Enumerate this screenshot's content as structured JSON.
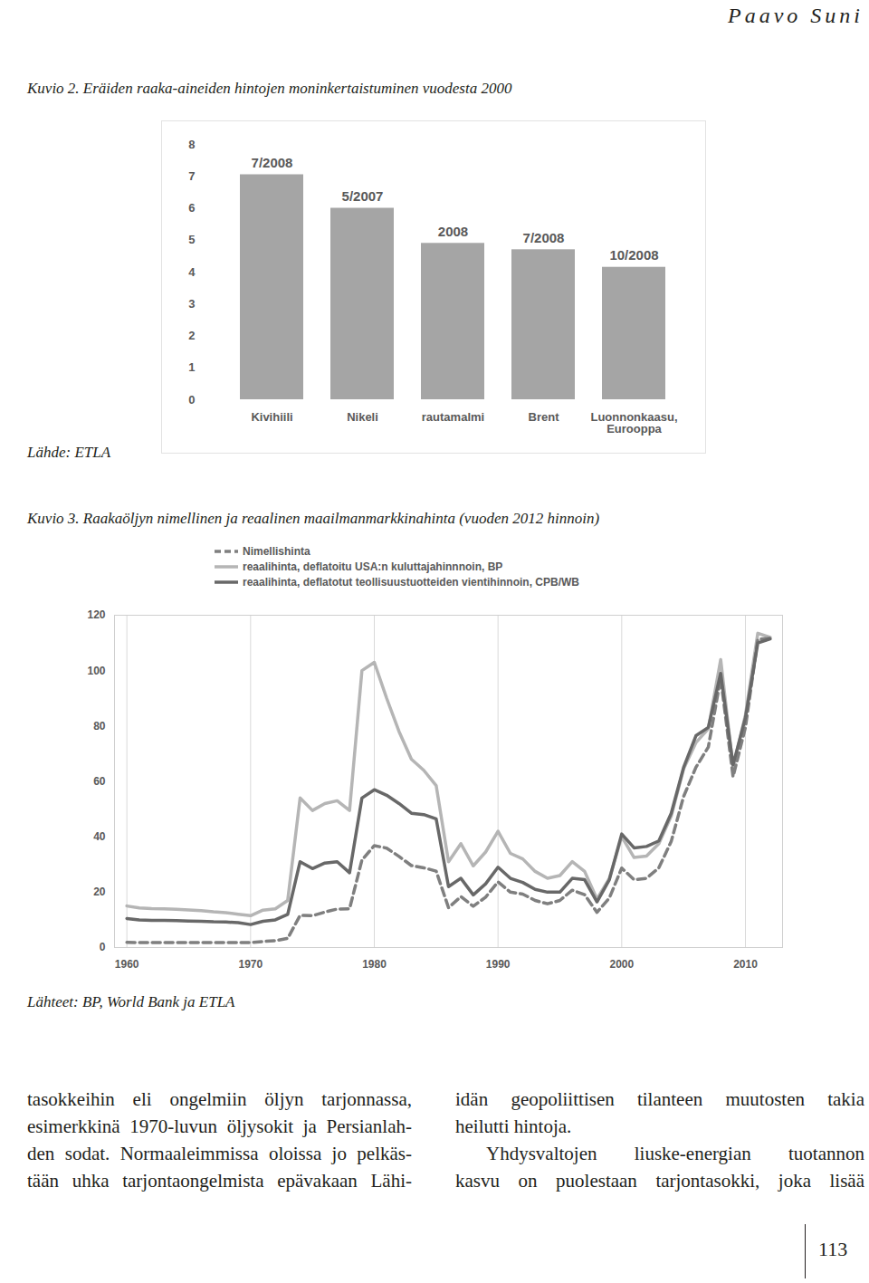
{
  "header": "Paavo Suni",
  "chart_data": [
    {
      "type": "bar",
      "title": "Kuvio 2. Eräiden raaka-aineiden hintojen moninkertaistuminen vuodesta 2000",
      "categories": [
        "Kivihiili",
        "Nikeli",
        "rautamalmi",
        "Brent",
        "Luonnonkaasu, Eurooppa"
      ],
      "values": [
        7.05,
        6.0,
        4.9,
        4.7,
        4.15
      ],
      "annotations": [
        "7/2008",
        "5/2007",
        "2008",
        "7/2008",
        "10/2008"
      ],
      "color": "#a5a5a5",
      "ylim": [
        0,
        8
      ],
      "yticks": [
        0,
        1,
        2,
        3,
        4,
        5,
        6,
        7,
        8
      ]
    },
    {
      "type": "line",
      "title": "Kuvio 3. Raakaöljyn nimellinen ja reaalinen maailmanmarkkinahinta (vuoden 2012 hinnoin)",
      "x": [
        1960,
        1961,
        1962,
        1963,
        1964,
        1965,
        1966,
        1967,
        1968,
        1969,
        1970,
        1971,
        1972,
        1973,
        1974,
        1975,
        1976,
        1977,
        1978,
        1979,
        1980,
        1981,
        1982,
        1983,
        1984,
        1985,
        1986,
        1987,
        1988,
        1989,
        1990,
        1991,
        1992,
        1993,
        1994,
        1995,
        1996,
        1997,
        1998,
        1999,
        2000,
        2001,
        2002,
        2003,
        2004,
        2005,
        2006,
        2007,
        2008,
        2009,
        2010,
        2011,
        2012
      ],
      "series": [
        {
          "name": "Nimellishinta",
          "color": "#7f7f7f",
          "line_style": "dashed",
          "values": [
            1.9,
            1.8,
            1.8,
            1.8,
            1.8,
            1.8,
            1.8,
            1.8,
            1.8,
            1.8,
            1.8,
            2.2,
            2.5,
            3.3,
            11.6,
            11.5,
            12.8,
            13.9,
            14.0,
            31.6,
            36.8,
            35.9,
            32.9,
            29.6,
            28.8,
            27.6,
            14.4,
            18.4,
            14.9,
            18.2,
            23.7,
            20.0,
            19.3,
            17.0,
            15.8,
            17.0,
            20.7,
            19.1,
            12.7,
            17.9,
            28.7,
            24.5,
            25.0,
            28.8,
            38.3,
            54.5,
            65.1,
            72.4,
            97.3,
            61.7,
            79.5,
            111.3,
            111.7
          ]
        },
        {
          "name": "reaalihinta, deflatoitu USA:n kuluttajahinnnoin, BP",
          "color": "#b5b5b5",
          "line_style": "solid",
          "values": [
            15.0,
            14.3,
            14.1,
            14.0,
            13.8,
            13.6,
            13.3,
            12.9,
            12.6,
            12.0,
            11.5,
            13.5,
            14.0,
            17.0,
            54.0,
            49.5,
            52.0,
            53.0,
            49.5,
            100.0,
            103.0,
            90.0,
            78.0,
            68.0,
            64.0,
            58.5,
            31.0,
            37.5,
            29.5,
            34.5,
            42.0,
            34.0,
            32.0,
            27.5,
            25.0,
            26.0,
            31.0,
            27.5,
            17.5,
            25.0,
            40.0,
            32.5,
            33.0,
            37.5,
            47.5,
            64.5,
            74.0,
            79.0,
            104.0,
            65.0,
            84.0,
            113.5,
            112.0
          ]
        },
        {
          "name": "reaalihinta, deflatotut teollisuustuotteiden vientihinnoin, CPB/WB",
          "color": "#686868",
          "line_style": "solid",
          "values": [
            10.5,
            10.0,
            9.8,
            9.8,
            9.7,
            9.6,
            9.5,
            9.3,
            9.2,
            9.0,
            8.3,
            9.5,
            10.0,
            12.0,
            31.0,
            28.5,
            30.5,
            31.0,
            27.0,
            54.0,
            57.0,
            55.0,
            52.0,
            48.5,
            48.0,
            46.5,
            22.0,
            25.0,
            19.0,
            23.0,
            29.0,
            25.0,
            23.5,
            21.0,
            20.0,
            20.0,
            25.0,
            24.5,
            16.5,
            24.5,
            41.0,
            36.0,
            36.5,
            38.5,
            48.5,
            65.0,
            76.5,
            79.5,
            99.0,
            66.0,
            83.0,
            110.0,
            111.5
          ]
        }
      ],
      "xlim": [
        1959,
        2013
      ],
      "xticks": [
        1960,
        1970,
        1980,
        1990,
        2000,
        2010
      ],
      "ylim": [
        0,
        120
      ],
      "yticks": [
        0,
        20,
        40,
        60,
        80,
        100,
        120
      ],
      "grid": "x",
      "legend": "top"
    }
  ],
  "sources": [
    "Lähde: ETLA",
    "Lähteet: BP, World Bank ja ETLA"
  ],
  "body": {
    "columns": [
      [
        [
          "tasokkeihin eli ongelmiin öljyn tarjonnassa,",
          "esimerkkinä 1970-luvun öljysokit ja Persianlah-",
          "den sodat. Normaaleimmissa oloissa jo pelkäs-",
          "tään uhka tarjontaongelmista epävakaan Lähi-"
        ]
      ],
      [
        [
          "idän geopoliittisen tilanteen muutosten takia",
          "heilutti hintoja."
        ],
        [
          "Yhdysvaltojen liuske-energian tuotannon",
          "kasvu on puolestaan tarjontasokki, joka lisää"
        ]
      ]
    ]
  },
  "page_number": "113"
}
